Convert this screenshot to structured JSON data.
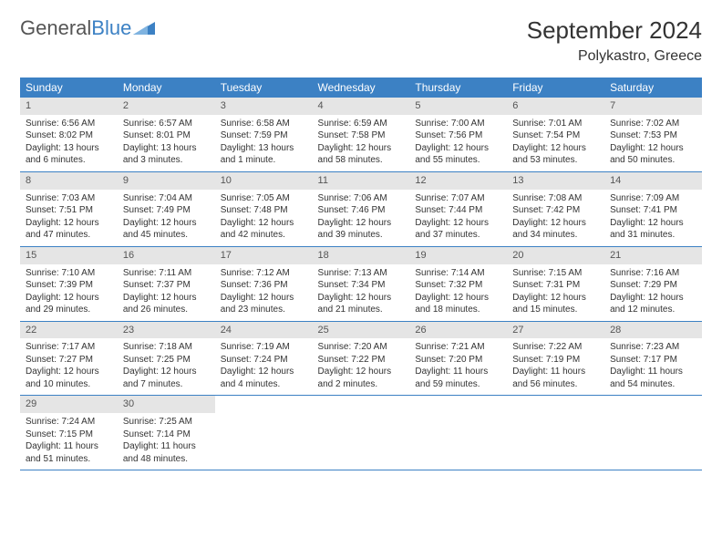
{
  "logo": {
    "text1": "General",
    "text2": "Blue"
  },
  "title": "September 2024",
  "location": "Polykastro, Greece",
  "colors": {
    "header_bg": "#3c81c4",
    "header_fg": "#ffffff",
    "daynum_bg": "#e5e5e5",
    "text": "#333333",
    "rule": "#3c81c4",
    "background": "#ffffff"
  },
  "typography": {
    "title_fontsize": 26,
    "location_fontsize": 16,
    "dayhead_fontsize": 12,
    "body_fontsize": 10
  },
  "day_headers": [
    "Sunday",
    "Monday",
    "Tuesday",
    "Wednesday",
    "Thursday",
    "Friday",
    "Saturday"
  ],
  "weeks": [
    [
      {
        "n": "1",
        "sunrise": "Sunrise: 6:56 AM",
        "sunset": "Sunset: 8:02 PM",
        "daylight": "Daylight: 13 hours and 6 minutes."
      },
      {
        "n": "2",
        "sunrise": "Sunrise: 6:57 AM",
        "sunset": "Sunset: 8:01 PM",
        "daylight": "Daylight: 13 hours and 3 minutes."
      },
      {
        "n": "3",
        "sunrise": "Sunrise: 6:58 AM",
        "sunset": "Sunset: 7:59 PM",
        "daylight": "Daylight: 13 hours and 1 minute."
      },
      {
        "n": "4",
        "sunrise": "Sunrise: 6:59 AM",
        "sunset": "Sunset: 7:58 PM",
        "daylight": "Daylight: 12 hours and 58 minutes."
      },
      {
        "n": "5",
        "sunrise": "Sunrise: 7:00 AM",
        "sunset": "Sunset: 7:56 PM",
        "daylight": "Daylight: 12 hours and 55 minutes."
      },
      {
        "n": "6",
        "sunrise": "Sunrise: 7:01 AM",
        "sunset": "Sunset: 7:54 PM",
        "daylight": "Daylight: 12 hours and 53 minutes."
      },
      {
        "n": "7",
        "sunrise": "Sunrise: 7:02 AM",
        "sunset": "Sunset: 7:53 PM",
        "daylight": "Daylight: 12 hours and 50 minutes."
      }
    ],
    [
      {
        "n": "8",
        "sunrise": "Sunrise: 7:03 AM",
        "sunset": "Sunset: 7:51 PM",
        "daylight": "Daylight: 12 hours and 47 minutes."
      },
      {
        "n": "9",
        "sunrise": "Sunrise: 7:04 AM",
        "sunset": "Sunset: 7:49 PM",
        "daylight": "Daylight: 12 hours and 45 minutes."
      },
      {
        "n": "10",
        "sunrise": "Sunrise: 7:05 AM",
        "sunset": "Sunset: 7:48 PM",
        "daylight": "Daylight: 12 hours and 42 minutes."
      },
      {
        "n": "11",
        "sunrise": "Sunrise: 7:06 AM",
        "sunset": "Sunset: 7:46 PM",
        "daylight": "Daylight: 12 hours and 39 minutes."
      },
      {
        "n": "12",
        "sunrise": "Sunrise: 7:07 AM",
        "sunset": "Sunset: 7:44 PM",
        "daylight": "Daylight: 12 hours and 37 minutes."
      },
      {
        "n": "13",
        "sunrise": "Sunrise: 7:08 AM",
        "sunset": "Sunset: 7:42 PM",
        "daylight": "Daylight: 12 hours and 34 minutes."
      },
      {
        "n": "14",
        "sunrise": "Sunrise: 7:09 AM",
        "sunset": "Sunset: 7:41 PM",
        "daylight": "Daylight: 12 hours and 31 minutes."
      }
    ],
    [
      {
        "n": "15",
        "sunrise": "Sunrise: 7:10 AM",
        "sunset": "Sunset: 7:39 PM",
        "daylight": "Daylight: 12 hours and 29 minutes."
      },
      {
        "n": "16",
        "sunrise": "Sunrise: 7:11 AM",
        "sunset": "Sunset: 7:37 PM",
        "daylight": "Daylight: 12 hours and 26 minutes."
      },
      {
        "n": "17",
        "sunrise": "Sunrise: 7:12 AM",
        "sunset": "Sunset: 7:36 PM",
        "daylight": "Daylight: 12 hours and 23 minutes."
      },
      {
        "n": "18",
        "sunrise": "Sunrise: 7:13 AM",
        "sunset": "Sunset: 7:34 PM",
        "daylight": "Daylight: 12 hours and 21 minutes."
      },
      {
        "n": "19",
        "sunrise": "Sunrise: 7:14 AM",
        "sunset": "Sunset: 7:32 PM",
        "daylight": "Daylight: 12 hours and 18 minutes."
      },
      {
        "n": "20",
        "sunrise": "Sunrise: 7:15 AM",
        "sunset": "Sunset: 7:31 PM",
        "daylight": "Daylight: 12 hours and 15 minutes."
      },
      {
        "n": "21",
        "sunrise": "Sunrise: 7:16 AM",
        "sunset": "Sunset: 7:29 PM",
        "daylight": "Daylight: 12 hours and 12 minutes."
      }
    ],
    [
      {
        "n": "22",
        "sunrise": "Sunrise: 7:17 AM",
        "sunset": "Sunset: 7:27 PM",
        "daylight": "Daylight: 12 hours and 10 minutes."
      },
      {
        "n": "23",
        "sunrise": "Sunrise: 7:18 AM",
        "sunset": "Sunset: 7:25 PM",
        "daylight": "Daylight: 12 hours and 7 minutes."
      },
      {
        "n": "24",
        "sunrise": "Sunrise: 7:19 AM",
        "sunset": "Sunset: 7:24 PM",
        "daylight": "Daylight: 12 hours and 4 minutes."
      },
      {
        "n": "25",
        "sunrise": "Sunrise: 7:20 AM",
        "sunset": "Sunset: 7:22 PM",
        "daylight": "Daylight: 12 hours and 2 minutes."
      },
      {
        "n": "26",
        "sunrise": "Sunrise: 7:21 AM",
        "sunset": "Sunset: 7:20 PM",
        "daylight": "Daylight: 11 hours and 59 minutes."
      },
      {
        "n": "27",
        "sunrise": "Sunrise: 7:22 AM",
        "sunset": "Sunset: 7:19 PM",
        "daylight": "Daylight: 11 hours and 56 minutes."
      },
      {
        "n": "28",
        "sunrise": "Sunrise: 7:23 AM",
        "sunset": "Sunset: 7:17 PM",
        "daylight": "Daylight: 11 hours and 54 minutes."
      }
    ],
    [
      {
        "n": "29",
        "sunrise": "Sunrise: 7:24 AM",
        "sunset": "Sunset: 7:15 PM",
        "daylight": "Daylight: 11 hours and 51 minutes."
      },
      {
        "n": "30",
        "sunrise": "Sunrise: 7:25 AM",
        "sunset": "Sunset: 7:14 PM",
        "daylight": "Daylight: 11 hours and 48 minutes."
      },
      null,
      null,
      null,
      null,
      null
    ]
  ]
}
